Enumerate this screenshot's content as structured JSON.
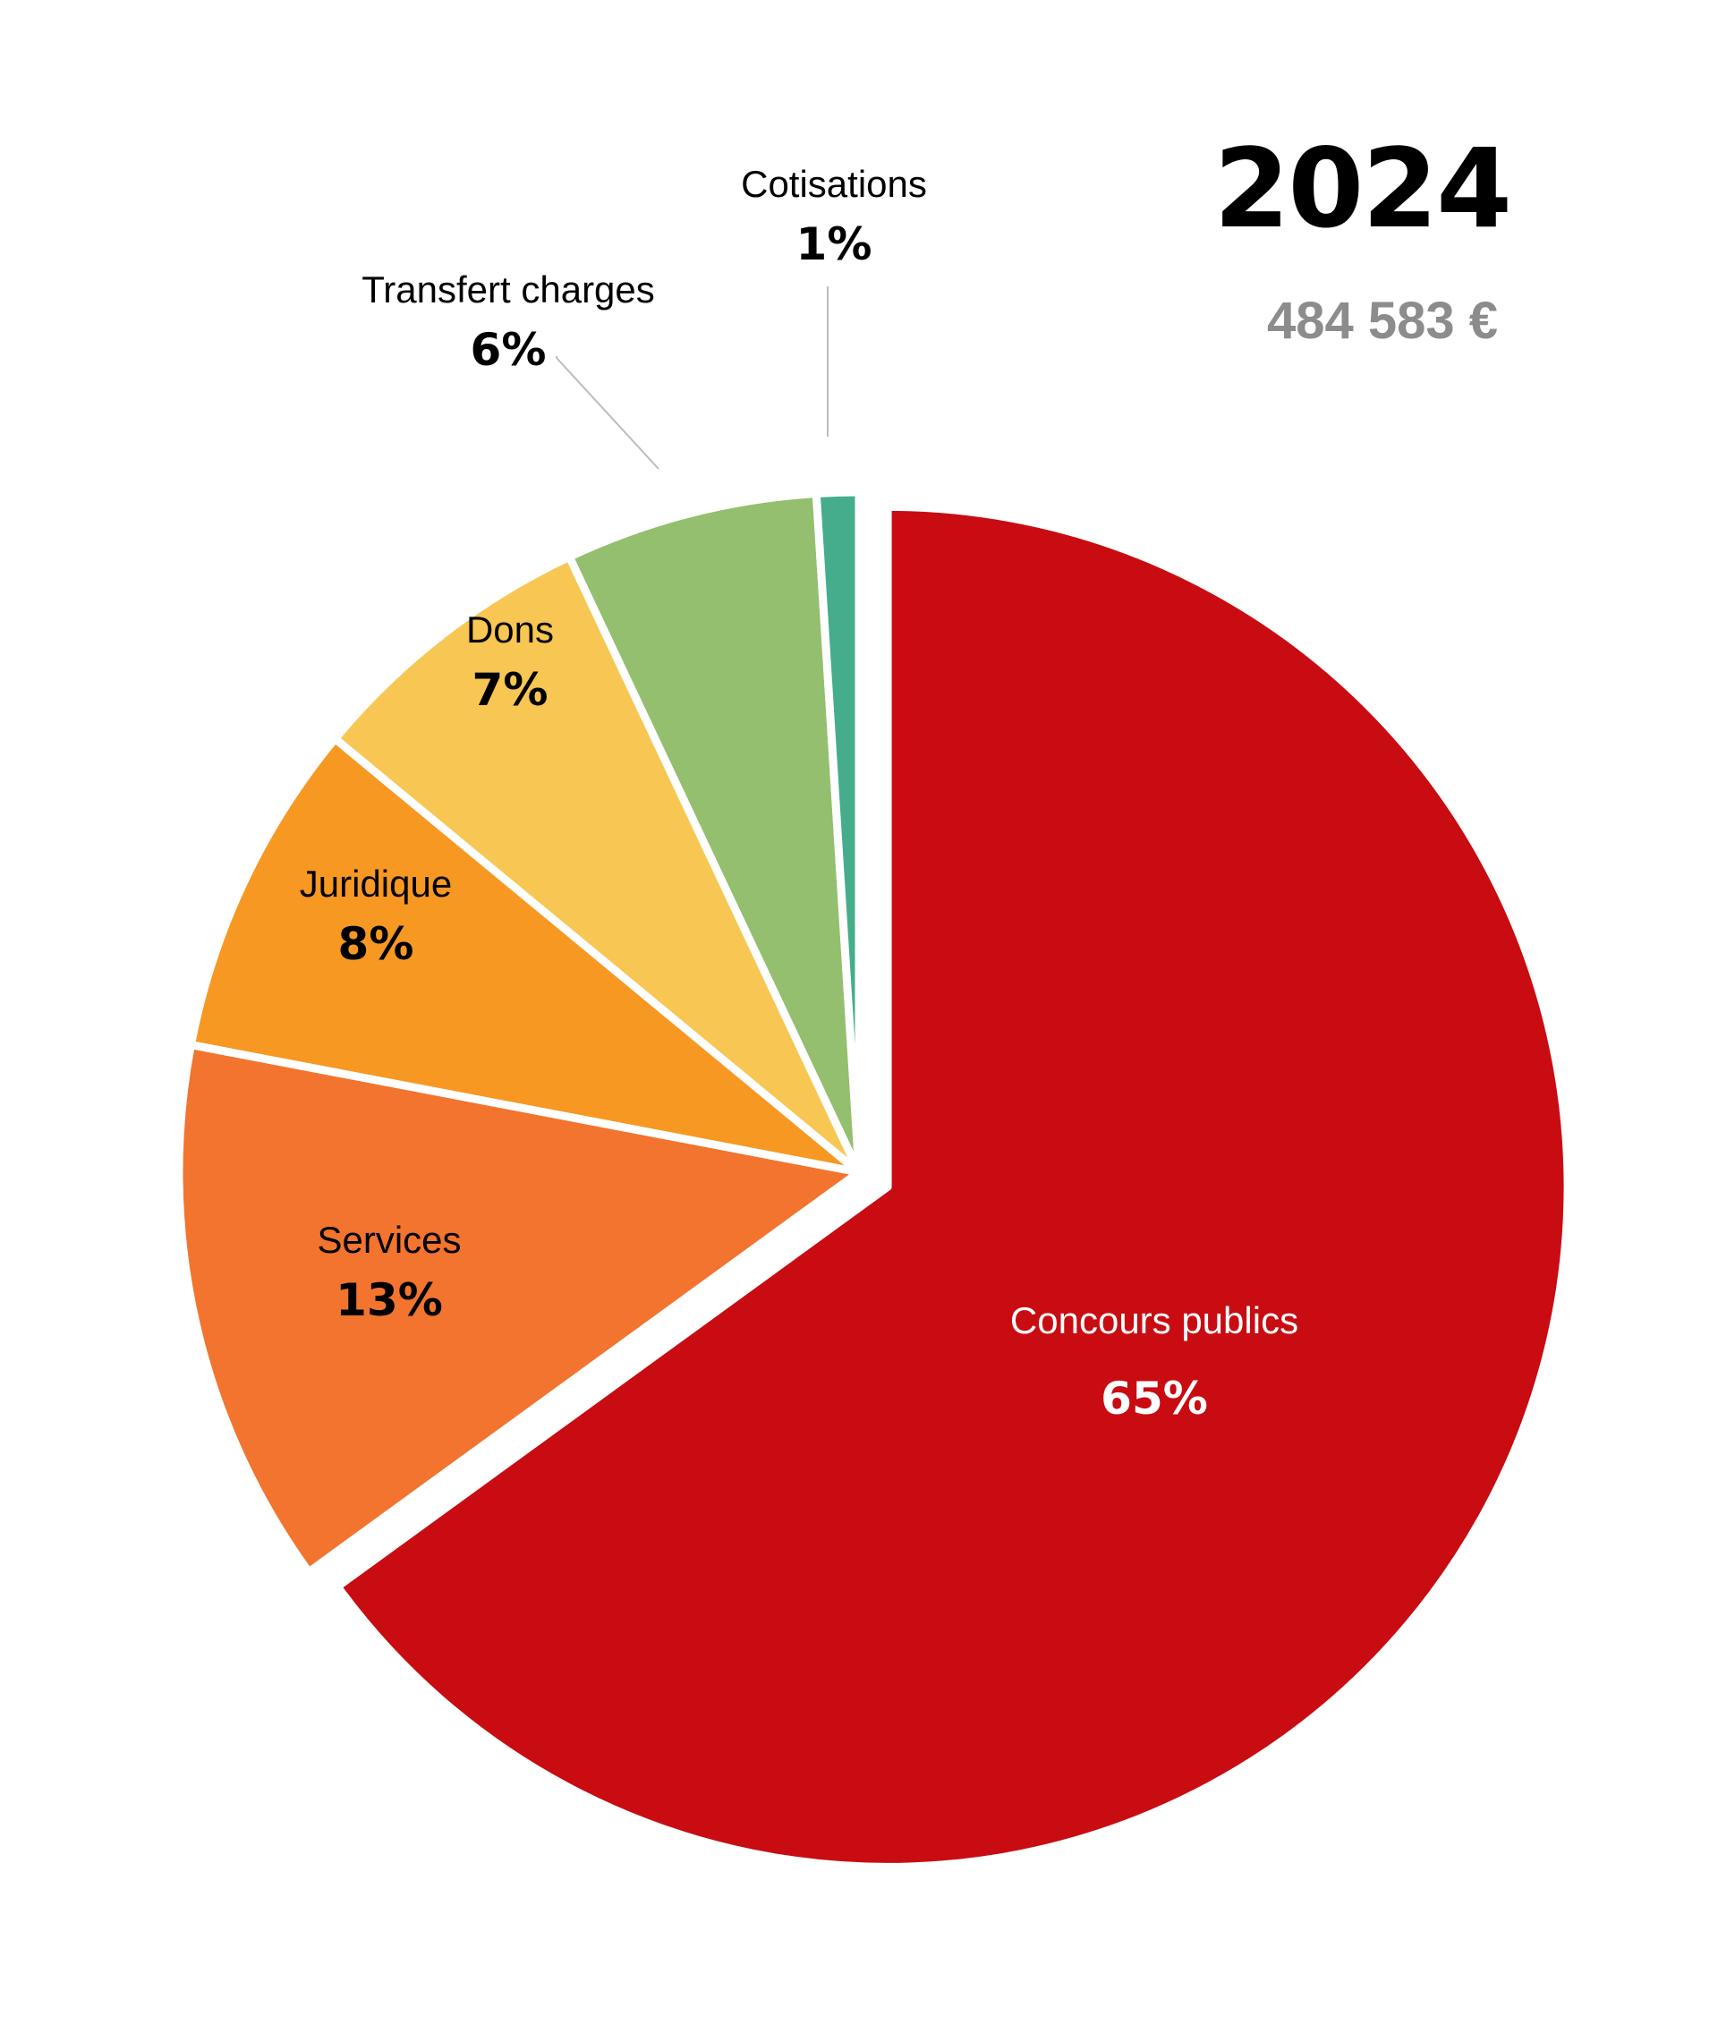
{
  "header": {
    "year": "2024",
    "total": "484 583 €"
  },
  "chart_data": {
    "type": "pie",
    "start_angle_deg": 0,
    "direction": "clockwise",
    "exploded_slice": "Concours publics",
    "slices": [
      {
        "label": "Concours publics",
        "value": 65,
        "pct_label": "65%",
        "color": "#C80C12",
        "text_color": "#FFFFFF"
      },
      {
        "label": "Services",
        "value": 13,
        "pct_label": "13%",
        "color": "#F2742F",
        "text_color": "#000000"
      },
      {
        "label": "Juridique",
        "value": 8,
        "pct_label": "8%",
        "color": "#F79822",
        "text_color": "#000000"
      },
      {
        "label": "Dons",
        "value": 7,
        "pct_label": "7%",
        "color": "#F8C653",
        "text_color": "#000000"
      },
      {
        "label": "Transfert charges",
        "value": 6,
        "pct_label": "6%",
        "color": "#93BF6E",
        "text_color": "#000000"
      },
      {
        "label": "Cotisations",
        "value": 1,
        "pct_label": "1%",
        "color": "#45AD8C",
        "text_color": "#000000"
      }
    ]
  }
}
